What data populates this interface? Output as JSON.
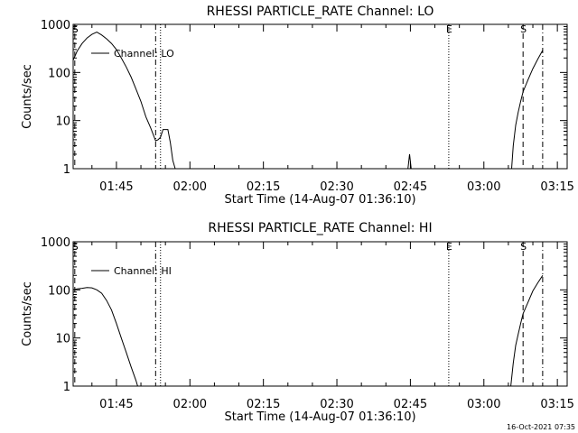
{
  "chart_data": [
    {
      "type": "line",
      "title": "RHESSI PARTICLE_RATE Channel: LO",
      "xlabel": "Start Time (14-Aug-07 01:36:10)",
      "ylabel": "Counts/sec",
      "y_scale": "log",
      "ylim": [
        1,
        1000
      ],
      "xlim": [
        "01:36:10",
        "03:17:00"
      ],
      "x_ticks": [
        "01:45",
        "02:00",
        "02:15",
        "02:30",
        "02:45",
        "03:00",
        "03:15"
      ],
      "y_ticks": [
        "1",
        "10",
        "100",
        "1000"
      ],
      "legend": {
        "entries": [
          "Channel: LO"
        ],
        "placement": "top-left"
      },
      "markers": [
        {
          "label": "S",
          "time": "01:36:30",
          "style": "dashed"
        },
        {
          "label": "",
          "time": "01:53:00",
          "style": "dash-dot"
        },
        {
          "label": "",
          "time": "01:54:00",
          "style": "dotted"
        },
        {
          "label": "E",
          "time": "02:52:50",
          "style": "dotted"
        },
        {
          "label": "S",
          "time": "03:08:00",
          "style": "dashed"
        },
        {
          "label": "",
          "time": "03:12:00",
          "style": "dash-dot"
        }
      ],
      "series": [
        {
          "name": "Channel: LO",
          "points": [
            [
              "01:36:10",
              180
            ],
            [
              "01:37:00",
              280
            ],
            [
              "01:38:00",
              400
            ],
            [
              "01:39:00",
              520
            ],
            [
              "01:40:00",
              620
            ],
            [
              "01:41:00",
              690
            ],
            [
              "01:42:00",
              600
            ],
            [
              "01:43:00",
              500
            ],
            [
              "01:44:00",
              400
            ],
            [
              "01:45:00",
              300
            ],
            [
              "01:46:00",
              200
            ],
            [
              "01:47:00",
              130
            ],
            [
              "01:48:00",
              80
            ],
            [
              "01:49:00",
              45
            ],
            [
              "01:50:00",
              25
            ],
            [
              "01:51:00",
              12
            ],
            [
              "01:52:00",
              7
            ],
            [
              "01:53:00",
              3.8
            ],
            [
              "01:53:30",
              4.0
            ],
            [
              "01:54:00",
              4.5
            ],
            [
              "01:54:30",
              6.5
            ],
            [
              "01:55:30",
              6.5
            ],
            [
              "01:56:00",
              3.5
            ],
            [
              "01:56:30",
              1.5
            ],
            [
              "01:57:00",
              1.0
            ]
          ]
        },
        {
          "name": "Channel: LO",
          "points": [
            [
              "02:44:30",
              1.0
            ],
            [
              "02:44:50",
              2.0
            ],
            [
              "02:45:10",
              1.0
            ]
          ]
        },
        {
          "name": "Channel: LO",
          "points": [
            [
              "03:05:40",
              1.0
            ],
            [
              "03:06:00",
              3.0
            ],
            [
              "03:06:30",
              8.0
            ],
            [
              "03:07:00",
              15
            ],
            [
              "03:07:30",
              25
            ],
            [
              "03:08:00",
              40
            ],
            [
              "03:09:00",
              70
            ],
            [
              "03:10:00",
              120
            ],
            [
              "03:11:00",
              190
            ],
            [
              "03:12:00",
              290
            ]
          ]
        }
      ]
    },
    {
      "type": "line",
      "title": "RHESSI PARTICLE_RATE Channel: HI",
      "xlabel": "Start Time (14-Aug-07 01:36:10)",
      "ylabel": "Counts/sec",
      "y_scale": "log",
      "ylim": [
        1,
        1000
      ],
      "xlim": [
        "01:36:10",
        "03:17:00"
      ],
      "x_ticks": [
        "01:45",
        "02:00",
        "02:15",
        "02:30",
        "02:45",
        "03:00",
        "03:15"
      ],
      "y_ticks": [
        "1",
        "10",
        "100",
        "1000"
      ],
      "legend": {
        "entries": [
          "Channel: HI"
        ],
        "placement": "top-left"
      },
      "markers": [
        {
          "label": "S",
          "time": "01:36:30",
          "style": "dashed"
        },
        {
          "label": "",
          "time": "01:53:00",
          "style": "dash-dot"
        },
        {
          "label": "",
          "time": "01:54:00",
          "style": "dotted"
        },
        {
          "label": "E",
          "time": "02:52:50",
          "style": "dotted"
        },
        {
          "label": "S",
          "time": "03:08:00",
          "style": "dashed"
        },
        {
          "label": "",
          "time": "03:12:00",
          "style": "dash-dot"
        }
      ],
      "series": [
        {
          "name": "Channel: HI",
          "points": [
            [
              "01:36:10",
              100
            ],
            [
              "01:37:00",
              105
            ],
            [
              "01:38:00",
              108
            ],
            [
              "01:39:00",
              112
            ],
            [
              "01:40:00",
              110
            ],
            [
              "01:41:00",
              100
            ],
            [
              "01:42:00",
              85
            ],
            [
              "01:43:00",
              60
            ],
            [
              "01:44:00",
              38
            ],
            [
              "01:45:00",
              20
            ],
            [
              "01:46:00",
              10
            ],
            [
              "01:47:00",
              5
            ],
            [
              "01:48:00",
              2.5
            ],
            [
              "01:49:00",
              1.3
            ],
            [
              "01:49:20",
              1.0
            ]
          ]
        },
        {
          "name": "Channel: HI",
          "points": [
            [
              "03:05:30",
              1.0
            ],
            [
              "03:06:00",
              3.0
            ],
            [
              "03:06:30",
              7.0
            ],
            [
              "03:07:00",
              12
            ],
            [
              "03:07:30",
              20
            ],
            [
              "03:08:00",
              32
            ],
            [
              "03:09:00",
              55
            ],
            [
              "03:10:00",
              95
            ],
            [
              "03:11:00",
              140
            ],
            [
              "03:12:00",
              200
            ]
          ]
        }
      ]
    }
  ],
  "footer": {
    "timestamp": "16-Oct-2021 07:35"
  }
}
